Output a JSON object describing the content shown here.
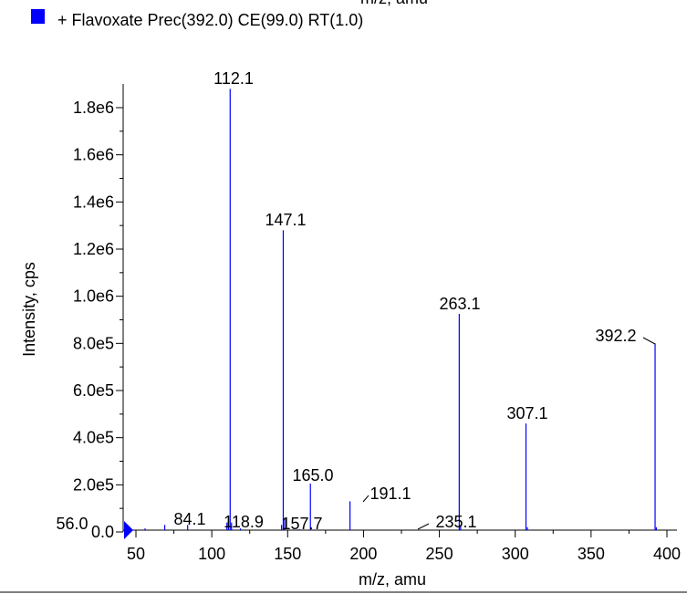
{
  "legend": {
    "label": "+ Flavoxate Prec(392.0) CE(99.0) RT(1.0)",
    "color": "#0000ff"
  },
  "top_clipped_text": "m/z, amu",
  "chart_data": {
    "type": "bar",
    "title": "",
    "xlabel": "m/z, amu",
    "ylabel": "Intensity, cps",
    "xlim": [
      40,
      405
    ],
    "ylim": [
      0,
      1880000
    ],
    "grid": false,
    "legend_position": "top-left",
    "series_color": "#0000ff",
    "xticks": [
      {
        "value": 50,
        "label": "50"
      },
      {
        "value": 100,
        "label": "100"
      },
      {
        "value": 150,
        "label": "150"
      },
      {
        "value": 200,
        "label": "200"
      },
      {
        "value": 250,
        "label": "250"
      },
      {
        "value": 300,
        "label": "300"
      },
      {
        "value": 350,
        "label": "350"
      },
      {
        "value": 400,
        "label": "400"
      }
    ],
    "yticks": [
      {
        "value": 0,
        "label": "0.0"
      },
      {
        "value": 200000,
        "label": "2.0e5"
      },
      {
        "value": 400000,
        "label": "4.0e5"
      },
      {
        "value": 600000,
        "label": "6.0e5"
      },
      {
        "value": 800000,
        "label": "8.0e5"
      },
      {
        "value": 1000000,
        "label": "1.0e6"
      },
      {
        "value": 1200000,
        "label": "1.2e6"
      },
      {
        "value": 1400000,
        "label": "1.4e6"
      },
      {
        "value": 1600000,
        "label": "1.6e6"
      },
      {
        "value": 1800000,
        "label": "1.8e6"
      }
    ],
    "peaks": [
      {
        "x": 56.0,
        "y": 15000
      },
      {
        "x": 69.0,
        "y": 30000
      },
      {
        "x": 84.1,
        "y": 30000
      },
      {
        "x": 110.0,
        "y": 40000
      },
      {
        "x": 111.0,
        "y": 60000
      },
      {
        "x": 112.1,
        "y": 1880000
      },
      {
        "x": 113.0,
        "y": 40000
      },
      {
        "x": 118.9,
        "y": 15000
      },
      {
        "x": 146.0,
        "y": 30000
      },
      {
        "x": 147.1,
        "y": 1280000
      },
      {
        "x": 148.0,
        "y": 60000
      },
      {
        "x": 157.7,
        "y": 12000
      },
      {
        "x": 165.0,
        "y": 205000
      },
      {
        "x": 191.1,
        "y": 130000
      },
      {
        "x": 235.1,
        "y": 8000
      },
      {
        "x": 263.1,
        "y": 925000
      },
      {
        "x": 264.0,
        "y": 30000
      },
      {
        "x": 307.1,
        "y": 460000
      },
      {
        "x": 308.0,
        "y": 20000
      },
      {
        "x": 392.2,
        "y": 800000
      },
      {
        "x": 393.0,
        "y": 20000
      }
    ],
    "peak_labels": [
      "56.0",
      "84.1",
      "112.1",
      "118.9",
      "147.1",
      "157.7",
      "165.0",
      "191.1",
      "235.1",
      "263.1",
      "307.1",
      "392.2"
    ]
  }
}
